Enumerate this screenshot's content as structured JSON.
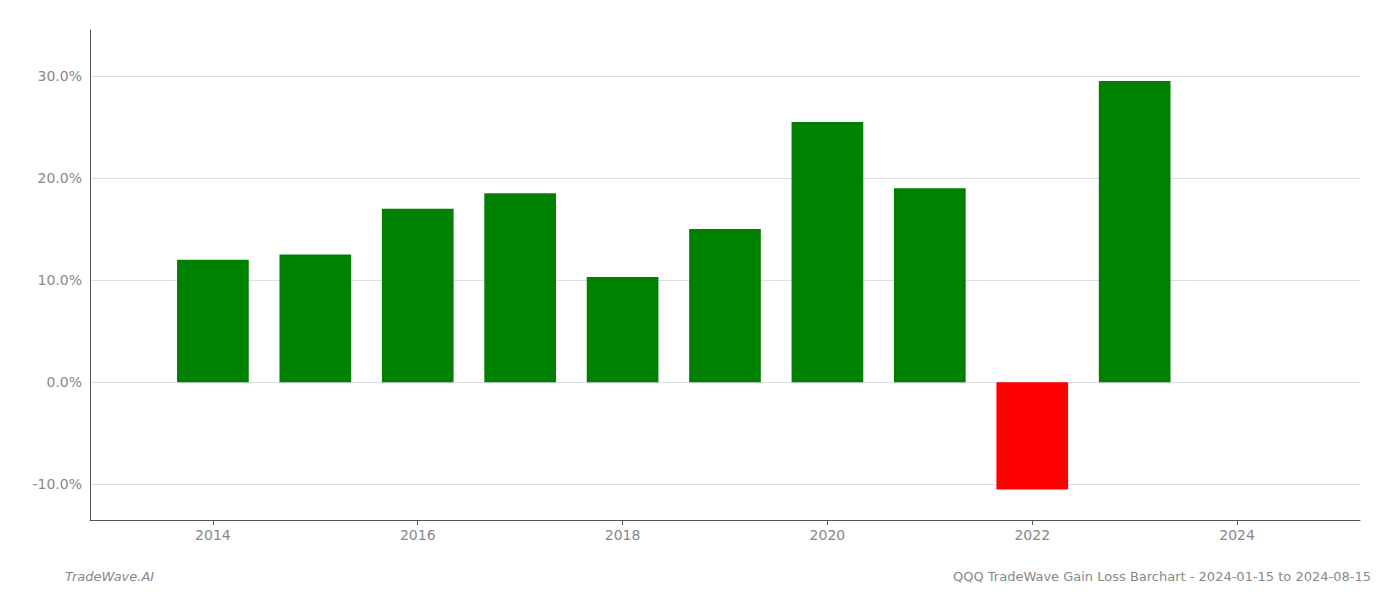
{
  "chart_data": {
    "type": "bar",
    "title": "QQQ TradeWave Gain Loss Barchart - 2024-01-15 to 2024-08-15",
    "annotations": [
      "TradeWave.AI"
    ],
    "x": [
      2014,
      2015,
      2016,
      2017,
      2018,
      2019,
      2020,
      2021,
      2022,
      2023
    ],
    "values": [
      0.12,
      0.125,
      0.17,
      0.185,
      0.103,
      0.15,
      0.255,
      0.19,
      -0.105,
      0.295
    ],
    "colors": [
      "#008000",
      "#008000",
      "#008000",
      "#008000",
      "#008000",
      "#008000",
      "#008000",
      "#008000",
      "#ff0000",
      "#008000"
    ],
    "xlim": [
      2012.8,
      2025.2
    ],
    "xticks": [
      2014,
      2016,
      2018,
      2020,
      2022,
      2024
    ],
    "ylim": [
      -0.135,
      0.345
    ],
    "yticks": [
      {
        "value": -0.1,
        "label": "-10.0%"
      },
      {
        "value": 0.0,
        "label": "0.0%"
      },
      {
        "value": 0.1,
        "label": "10.0%"
      },
      {
        "value": 0.2,
        "label": "20.0%"
      },
      {
        "value": 0.3,
        "label": "30.0%"
      }
    ],
    "grid": true
  }
}
